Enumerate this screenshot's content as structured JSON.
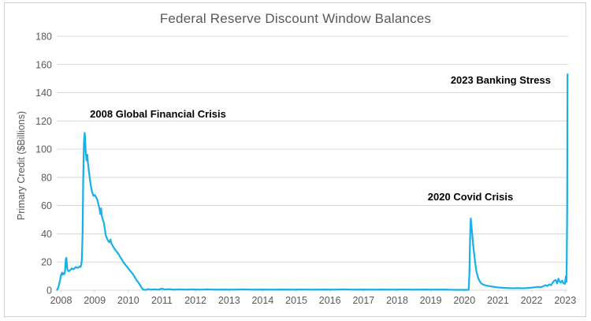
{
  "chart_data": {
    "type": "line",
    "title": "Federal Reserve Discount Window Balances",
    "xlabel": "",
    "ylabel": "Primary Credit ($Billions)",
    "x_ticks": [
      2008,
      2009,
      2010,
      2011,
      2012,
      2013,
      2014,
      2015,
      2016,
      2017,
      2018,
      2019,
      2020,
      2021,
      2022,
      2023
    ],
    "y_ticks": [
      0,
      20,
      40,
      60,
      80,
      100,
      120,
      140,
      160,
      180
    ],
    "ylim": [
      0,
      180
    ],
    "xlim": [
      2007.88,
      2023.09
    ],
    "grid": "horizontal",
    "legend_position": "none",
    "line_color": "#1BB1E8",
    "grid_color": "#D9D9D9",
    "axis_text_color": "#595959",
    "annotation_color": "#000000",
    "annotations": [
      {
        "text": "2008 Global Financial Crisis",
        "year": 2008.86,
        "value": 128.6
      },
      {
        "text": "2020 Covid Crisis",
        "year": 2018.91,
        "value": 69.9
      },
      {
        "text": "2023 Banking Stress",
        "year": 2019.59,
        "value": 152.6
      }
    ],
    "series": [
      {
        "name": "Primary Credit",
        "points": [
          [
            2007.88,
            0.2
          ],
          [
            2007.92,
            2
          ],
          [
            2007.96,
            6
          ],
          [
            2008.0,
            11
          ],
          [
            2008.03,
            12.5
          ],
          [
            2008.05,
            11
          ],
          [
            2008.08,
            12
          ],
          [
            2008.1,
            11.5
          ],
          [
            2008.12,
            14
          ],
          [
            2008.14,
            22
          ],
          [
            2008.16,
            23
          ],
          [
            2008.18,
            16
          ],
          [
            2008.2,
            14
          ],
          [
            2008.24,
            13.5
          ],
          [
            2008.28,
            14.5
          ],
          [
            2008.32,
            15.5
          ],
          [
            2008.36,
            14.8
          ],
          [
            2008.4,
            15.5
          ],
          [
            2008.44,
            16.5
          ],
          [
            2008.48,
            15.8
          ],
          [
            2008.52,
            16.2
          ],
          [
            2008.56,
            17
          ],
          [
            2008.58,
            16.5
          ],
          [
            2008.6,
            18
          ],
          [
            2008.62,
            22
          ],
          [
            2008.64,
            40
          ],
          [
            2008.66,
            78
          ],
          [
            2008.68,
            104
          ],
          [
            2008.7,
            111.5
          ],
          [
            2008.71,
            109
          ],
          [
            2008.72,
            105
          ],
          [
            2008.73,
            100
          ],
          [
            2008.74,
            96
          ],
          [
            2008.76,
            92
          ],
          [
            2008.78,
            96
          ],
          [
            2008.79,
            93
          ],
          [
            2008.8,
            90
          ],
          [
            2008.82,
            86
          ],
          [
            2008.85,
            80
          ],
          [
            2008.88,
            75
          ],
          [
            2008.92,
            70
          ],
          [
            2008.96,
            67
          ],
          [
            2009.0,
            67.5
          ],
          [
            2009.04,
            66
          ],
          [
            2009.08,
            64
          ],
          [
            2009.12,
            60
          ],
          [
            2009.15,
            57
          ],
          [
            2009.17,
            54
          ],
          [
            2009.19,
            58
          ],
          [
            2009.21,
            53
          ],
          [
            2009.24,
            50
          ],
          [
            2009.27,
            48
          ],
          [
            2009.3,
            44
          ],
          [
            2009.33,
            39
          ],
          [
            2009.36,
            37
          ],
          [
            2009.4,
            35
          ],
          [
            2009.44,
            34
          ],
          [
            2009.47,
            36
          ],
          [
            2009.5,
            33
          ],
          [
            2009.55,
            31
          ],
          [
            2009.6,
            29
          ],
          [
            2009.65,
            27.5
          ],
          [
            2009.7,
            26
          ],
          [
            2009.75,
            24
          ],
          [
            2009.8,
            22
          ],
          [
            2009.85,
            20
          ],
          [
            2009.9,
            18.5
          ],
          [
            2009.95,
            17
          ],
          [
            2010.0,
            15.5
          ],
          [
            2010.05,
            14
          ],
          [
            2010.1,
            12.5
          ],
          [
            2010.15,
            11
          ],
          [
            2010.2,
            9
          ],
          [
            2010.25,
            7
          ],
          [
            2010.3,
            5.5
          ],
          [
            2010.34,
            4
          ],
          [
            2010.38,
            2.5
          ],
          [
            2010.42,
            1
          ],
          [
            2010.46,
            0.4
          ],
          [
            2010.52,
            0.3
          ],
          [
            2010.6,
            0.8
          ],
          [
            2010.68,
            0.4
          ],
          [
            2010.78,
            0.6
          ],
          [
            2010.9,
            0.4
          ],
          [
            2011.0,
            1.1
          ],
          [
            2011.08,
            0.5
          ],
          [
            2011.2,
            0.8
          ],
          [
            2011.35,
            0.4
          ],
          [
            2011.5,
            0.6
          ],
          [
            2011.7,
            0.4
          ],
          [
            2011.9,
            0.6
          ],
          [
            2012.1,
            0.4
          ],
          [
            2012.35,
            0.6
          ],
          [
            2012.6,
            0.4
          ],
          [
            2012.85,
            0.5
          ],
          [
            2013.1,
            0.4
          ],
          [
            2013.4,
            0.6
          ],
          [
            2013.7,
            0.4
          ],
          [
            2014.0,
            0.5
          ],
          [
            2014.3,
            0.4
          ],
          [
            2014.6,
            0.5
          ],
          [
            2014.9,
            0.4
          ],
          [
            2015.2,
            0.5
          ],
          [
            2015.5,
            0.4
          ],
          [
            2015.8,
            0.5
          ],
          [
            2016.1,
            0.4
          ],
          [
            2016.4,
            0.6
          ],
          [
            2016.7,
            0.4
          ],
          [
            2017.0,
            0.5
          ],
          [
            2017.3,
            0.4
          ],
          [
            2017.6,
            0.5
          ],
          [
            2017.9,
            0.4
          ],
          [
            2018.2,
            0.5
          ],
          [
            2018.5,
            0.4
          ],
          [
            2018.8,
            0.5
          ],
          [
            2019.1,
            0.4
          ],
          [
            2019.4,
            0.5
          ],
          [
            2019.7,
            0.3
          ],
          [
            2019.95,
            0.3
          ],
          [
            2020.1,
            0.3
          ],
          [
            2020.13,
            0.4
          ],
          [
            2020.15,
            12
          ],
          [
            2020.17,
            38
          ],
          [
            2020.19,
            50.8
          ],
          [
            2020.21,
            46
          ],
          [
            2020.24,
            38
          ],
          [
            2020.27,
            30
          ],
          [
            2020.3,
            24
          ],
          [
            2020.33,
            18
          ],
          [
            2020.36,
            13
          ],
          [
            2020.4,
            9.5
          ],
          [
            2020.44,
            7
          ],
          [
            2020.48,
            5.5
          ],
          [
            2020.52,
            4.5
          ],
          [
            2020.58,
            3.8
          ],
          [
            2020.65,
            3.3
          ],
          [
            2020.75,
            2.9
          ],
          [
            2020.85,
            2.5
          ],
          [
            2020.95,
            2.2
          ],
          [
            2021.05,
            1.9
          ],
          [
            2021.15,
            1.7
          ],
          [
            2021.3,
            1.5
          ],
          [
            2021.45,
            1.4
          ],
          [
            2021.6,
            1.5
          ],
          [
            2021.75,
            1.4
          ],
          [
            2021.9,
            1.6
          ],
          [
            2022.0,
            1.8
          ],
          [
            2022.1,
            2.1
          ],
          [
            2022.2,
            2.4
          ],
          [
            2022.28,
            2.1
          ],
          [
            2022.36,
            3
          ],
          [
            2022.42,
            3.6
          ],
          [
            2022.47,
            3
          ],
          [
            2022.53,
            4.2
          ],
          [
            2022.58,
            3.5
          ],
          [
            2022.63,
            5.5
          ],
          [
            2022.68,
            6.8
          ],
          [
            2022.72,
            7.2
          ],
          [
            2022.76,
            4.8
          ],
          [
            2022.8,
            8.2
          ],
          [
            2022.83,
            6.3
          ],
          [
            2022.87,
            5.4
          ],
          [
            2022.91,
            6.8
          ],
          [
            2022.95,
            5
          ],
          [
            2022.99,
            4.5
          ],
          [
            2023.02,
            9.8
          ],
          [
            2023.04,
            6
          ],
          [
            2023.06,
            60
          ],
          [
            2023.07,
            153
          ]
        ]
      }
    ]
  },
  "window": {
    "border_color": "#D2D2D2",
    "background": "#FFFFFF"
  }
}
